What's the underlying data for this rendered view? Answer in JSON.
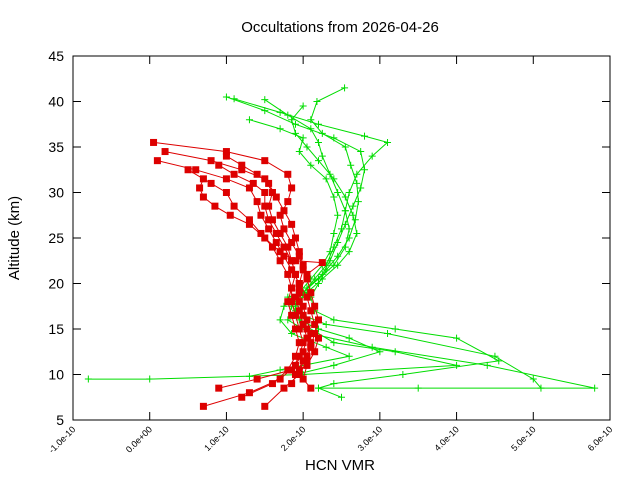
{
  "chart_data": {
    "type": "scatter",
    "title": "Occultations from 2026-04-26",
    "xlabel": "HCN VMR",
    "ylabel": "Altitude (km)",
    "xlim": [
      -1e-10,
      6e-10
    ],
    "ylim": [
      5,
      45
    ],
    "x_ticks": [
      -1e-10,
      0.0,
      1e-10,
      2e-10,
      3e-10,
      4e-10,
      5e-10,
      6e-10
    ],
    "x_tick_labels": [
      "-1.0e-10",
      "0.0e+00",
      "1.0e-10",
      "2.0e-10",
      "3.0e-10",
      "4.0e-10",
      "5.0e-10",
      "6.0e-10"
    ],
    "y_ticks": [
      5,
      10,
      15,
      20,
      25,
      30,
      35,
      40,
      45
    ],
    "y_tick_labels": [
      "5",
      "10",
      "15",
      "20",
      "25",
      "30",
      "35",
      "40",
      "45"
    ],
    "grid": false,
    "series": [
      {
        "color": "#00dd00",
        "marker": "plus",
        "style": "line",
        "points": [
          [
            2.54e-10,
            41.5
          ],
          [
            2.18e-10,
            40.0
          ],
          [
            2.1e-10,
            38.0
          ],
          [
            2.25e-10,
            36.5
          ],
          [
            2.55e-10,
            35.0
          ],
          [
            2.62e-10,
            33.0
          ],
          [
            2.7e-10,
            31.0
          ],
          [
            2.72e-10,
            29.0
          ],
          [
            2.68e-10,
            27.0
          ],
          [
            2.6e-10,
            25.0
          ],
          [
            2.45e-10,
            23.0
          ],
          [
            2.3e-10,
            21.5
          ],
          [
            2.2e-10,
            20.0
          ],
          [
            2.1e-10,
            18.5
          ],
          [
            2.15e-10,
            17.0
          ],
          [
            2.4e-10,
            16.0
          ],
          [
            3.2e-10,
            15.0
          ],
          [
            4e-10,
            14.0
          ],
          [
            4.55e-10,
            11.5
          ],
          [
            3.3e-10,
            10.0
          ],
          [
            2.4e-10,
            9.0
          ],
          [
            2.2e-10,
            8.5
          ],
          [
            2.5e-10,
            7.5
          ]
        ]
      },
      {
        "color": "#00dd00",
        "marker": "plus",
        "style": "line",
        "points": [
          [
            1e-10,
            40.5
          ],
          [
            1.5e-10,
            39.0
          ],
          [
            1.9e-10,
            37.5
          ],
          [
            2.4e-10,
            36.0
          ],
          [
            2.75e-10,
            34.5
          ],
          [
            2.8e-10,
            32.5
          ],
          [
            2.75e-10,
            30.5
          ],
          [
            2.65e-10,
            28.5
          ],
          [
            2.55e-10,
            26.5
          ],
          [
            2.45e-10,
            24.5
          ],
          [
            2.35e-10,
            22.5
          ],
          [
            2.25e-10,
            21.0
          ],
          [
            2.05e-10,
            19.5
          ],
          [
            1.95e-10,
            18.0
          ],
          [
            2e-10,
            16.5
          ],
          [
            2.3e-10,
            15.5
          ],
          [
            3.1e-10,
            14.5
          ],
          [
            4.5e-10,
            12.0
          ],
          [
            5e-10,
            9.5
          ],
          [
            5.1e-10,
            8.5
          ]
        ]
      },
      {
        "color": "#00dd00",
        "marker": "plus",
        "style": "line",
        "points": [
          [
            1.1e-10,
            40.3
          ],
          [
            1.7e-10,
            38.8
          ],
          [
            2.2e-10,
            37.5
          ],
          [
            2.8e-10,
            36.2
          ],
          [
            3.1e-10,
            35.5
          ],
          [
            2.9e-10,
            34.0
          ],
          [
            2.7e-10,
            32.0
          ],
          [
            2.6e-10,
            30.0
          ],
          [
            2.55e-10,
            28.0
          ],
          [
            2.5e-10,
            26.0
          ],
          [
            2.4e-10,
            24.0
          ],
          [
            2.3e-10,
            22.0
          ],
          [
            2.15e-10,
            20.5
          ],
          [
            2e-10,
            19.0
          ],
          [
            1.85e-10,
            17.5
          ],
          [
            1.8e-10,
            16.0
          ],
          [
            2.1e-10,
            14.5
          ],
          [
            2.9e-10,
            13.0
          ],
          [
            4.4e-10,
            11.0
          ],
          [
            5.8e-10,
            8.5
          ],
          [
            3.5e-10,
            8.5
          ],
          [
            2.2e-10,
            8.5
          ]
        ]
      },
      {
        "color": "#00dd00",
        "marker": "plus",
        "style": "line",
        "points": [
          [
            1.5e-10,
            40.2
          ],
          [
            1.8e-10,
            38.5
          ],
          [
            2.1e-10,
            37.0
          ],
          [
            2.2e-10,
            35.5
          ],
          [
            2.25e-10,
            34.0
          ],
          [
            2.35e-10,
            32.0
          ],
          [
            2.45e-10,
            30.0
          ],
          [
            2.55e-10,
            28.0
          ],
          [
            2.6e-10,
            26.0
          ],
          [
            2.55e-10,
            24.0
          ],
          [
            2.4e-10,
            22.0
          ],
          [
            2.2e-10,
            20.5
          ],
          [
            2e-10,
            19.0
          ],
          [
            1.8e-10,
            18.5
          ],
          [
            1.9e-10,
            17.0
          ],
          [
            2e-10,
            15.5
          ],
          [
            2.4e-10,
            13.5
          ],
          [
            3.2e-10,
            12.5
          ],
          [
            4e-10,
            11.0
          ],
          [
            2e-10,
            10.0
          ],
          [
            0.0,
            9.5
          ],
          [
            -8e-11,
            9.5
          ]
        ]
      },
      {
        "color": "#00dd00",
        "marker": "plus",
        "style": "line",
        "points": [
          [
            1.3e-10,
            38.0
          ],
          [
            1.7e-10,
            37.0
          ],
          [
            2e-10,
            36.0
          ],
          [
            1.95e-10,
            34.5
          ],
          [
            2.1e-10,
            33.0
          ],
          [
            2.3e-10,
            31.5
          ],
          [
            2.4e-10,
            29.5
          ],
          [
            2.45e-10,
            27.5
          ],
          [
            2.4e-10,
            25.5
          ],
          [
            2.35e-10,
            23.5
          ],
          [
            2.25e-10,
            22.0
          ],
          [
            2.1e-10,
            20.5
          ],
          [
            1.95e-10,
            19.0
          ],
          [
            1.75e-10,
            17.5
          ],
          [
            1.7e-10,
            16.0
          ],
          [
            1.85e-10,
            14.5
          ],
          [
            2.3e-10,
            13.0
          ],
          [
            2.6e-10,
            12.0
          ],
          [
            1.7e-10,
            10.5
          ],
          [
            1.3e-10,
            9.8
          ]
        ]
      },
      {
        "color": "#00dd00",
        "marker": "plus",
        "style": "line",
        "points": [
          [
            2e-10,
            39.5
          ],
          [
            1.85e-10,
            38.0
          ],
          [
            1.9e-10,
            36.5
          ],
          [
            2.05e-10,
            35.0
          ],
          [
            2.2e-10,
            33.5
          ],
          [
            2.4e-10,
            31.5
          ],
          [
            2.55e-10,
            29.5
          ],
          [
            2.65e-10,
            27.5
          ],
          [
            2.7e-10,
            25.5
          ],
          [
            2.6e-10,
            23.5
          ],
          [
            2.45e-10,
            22.0
          ],
          [
            2.25e-10,
            20.5
          ],
          [
            2.05e-10,
            19.0
          ],
          [
            1.9e-10,
            17.5
          ],
          [
            1.95e-10,
            16.0
          ],
          [
            2.2e-10,
            15.0
          ],
          [
            2.6e-10,
            14.0
          ],
          [
            3e-10,
            12.5
          ],
          [
            2.4e-10,
            11.0
          ],
          [
            1.9e-10,
            10.0
          ]
        ]
      },
      {
        "color": "#dd0000",
        "marker": "square",
        "style": "line",
        "points": [
          [
            5e-12,
            35.5
          ],
          [
            1e-10,
            34.5
          ],
          [
            1.5e-10,
            33.5
          ],
          [
            1.8e-10,
            32.0
          ],
          [
            1.85e-10,
            30.5
          ],
          [
            1.8e-10,
            29.0
          ],
          [
            1.7e-10,
            27.5
          ],
          [
            1.75e-10,
            26.0
          ],
          [
            1.85e-10,
            24.5
          ],
          [
            1.95e-10,
            23.0
          ],
          [
            2e-10,
            21.5
          ],
          [
            1.95e-10,
            20.0
          ],
          [
            1.9e-10,
            18.5
          ],
          [
            1.95e-10,
            17.0
          ],
          [
            2e-10,
            15.5
          ],
          [
            2.05e-10,
            14.0
          ],
          [
            2e-10,
            12.5
          ],
          [
            1.9e-10,
            11.0
          ],
          [
            1.7e-10,
            9.5
          ],
          [
            1.3e-10,
            8.0
          ],
          [
            7e-11,
            6.5
          ]
        ]
      },
      {
        "color": "#dd0000",
        "marker": "square",
        "style": "line",
        "points": [
          [
            2e-11,
            34.5
          ],
          [
            8e-11,
            33.5
          ],
          [
            1.2e-10,
            32.5
          ],
          [
            1.5e-10,
            31.5
          ],
          [
            1.6e-10,
            30.0
          ],
          [
            1.55e-10,
            28.5
          ],
          [
            1.6e-10,
            27.0
          ],
          [
            1.7e-10,
            25.5
          ],
          [
            1.8e-10,
            24.0
          ],
          [
            1.85e-10,
            22.5
          ],
          [
            1.9e-10,
            21.0
          ],
          [
            1.85e-10,
            19.5
          ],
          [
            1.8e-10,
            18.0
          ],
          [
            1.85e-10,
            16.5
          ],
          [
            1.9e-10,
            15.0
          ],
          [
            1.95e-10,
            13.5
          ],
          [
            1.9e-10,
            12.0
          ],
          [
            1.8e-10,
            10.5
          ],
          [
            1.6e-10,
            9.0
          ],
          [
            1.2e-10,
            7.5
          ]
        ]
      },
      {
        "color": "#dd0000",
        "marker": "square",
        "style": "line",
        "points": [
          [
            1e-11,
            33.5
          ],
          [
            6e-11,
            32.5
          ],
          [
            1e-10,
            31.5
          ],
          [
            1.3e-10,
            30.5
          ],
          [
            1.4e-10,
            29.0
          ],
          [
            1.45e-10,
            27.5
          ],
          [
            1.55e-10,
            26.0
          ],
          [
            1.65e-10,
            24.5
          ],
          [
            1.75e-10,
            23.0
          ],
          [
            1.85e-10,
            21.5
          ],
          [
            1.95e-10,
            20.0
          ],
          [
            2.05e-10,
            18.5
          ],
          [
            2.1e-10,
            17.0
          ],
          [
            2.15e-10,
            15.5
          ],
          [
            2.2e-10,
            14.0
          ],
          [
            2.15e-10,
            12.5
          ],
          [
            2.05e-10,
            11.0
          ],
          [
            2e-10,
            9.5
          ],
          [
            2.1e-10,
            8.5
          ]
        ]
      },
      {
        "color": "#dd0000",
        "marker": "square",
        "style": "line",
        "points": [
          [
            5e-11,
            32.5
          ],
          [
            8e-11,
            31.0
          ],
          [
            1e-10,
            30.0
          ],
          [
            1.1e-10,
            28.5
          ],
          [
            1.3e-10,
            27.0
          ],
          [
            1.45e-10,
            25.5
          ],
          [
            1.6e-10,
            24.0
          ],
          [
            1.7e-10,
            22.5
          ],
          [
            1.8e-10,
            21.0
          ],
          [
            1.85e-10,
            19.5
          ],
          [
            1.85e-10,
            18.0
          ],
          [
            1.9e-10,
            16.5
          ],
          [
            1.95e-10,
            15.0
          ],
          [
            2e-10,
            13.5
          ],
          [
            1.95e-10,
            12.0
          ],
          [
            1.85e-10,
            10.5
          ],
          [
            1.4e-10,
            9.5
          ],
          [
            9e-11,
            8.5
          ]
        ]
      },
      {
        "color": "#dd0000",
        "marker": "square",
        "style": "line",
        "points": [
          [
            7e-11,
            31.5
          ],
          [
            6.5e-11,
            30.5
          ],
          [
            7e-11,
            29.5
          ],
          [
            8.5e-11,
            28.5
          ],
          [
            1.05e-10,
            27.5
          ],
          [
            1.3e-10,
            26.5
          ],
          [
            1.5e-10,
            25.0
          ],
          [
            1.7e-10,
            23.5
          ],
          [
            1.9e-10,
            22.5
          ],
          [
            2.25e-10,
            22.3
          ],
          [
            2.05e-10,
            21.0
          ],
          [
            1.95e-10,
            19.0
          ],
          [
            2e-10,
            17.5
          ],
          [
            2.05e-10,
            16.0
          ],
          [
            2.1e-10,
            14.5
          ],
          [
            2.1e-10,
            13.0
          ],
          [
            2.05e-10,
            11.5
          ],
          [
            1.95e-10,
            10.0
          ],
          [
            1.75e-10,
            8.5
          ],
          [
            1.5e-10,
            6.5
          ]
        ]
      },
      {
        "color": "#dd0000",
        "marker": "square",
        "style": "line",
        "points": [
          [
            9e-11,
            33.0
          ],
          [
            1.1e-10,
            32.0
          ],
          [
            1.35e-10,
            31.0
          ],
          [
            1.5e-10,
            30.0
          ],
          [
            1.5e-10,
            28.5
          ],
          [
            1.55e-10,
            27.0
          ],
          [
            1.65e-10,
            25.5
          ],
          [
            1.75e-10,
            24.0
          ],
          [
            1.85e-10,
            22.5
          ],
          [
            1.9e-10,
            21.0
          ],
          [
            1.95e-10,
            19.5
          ],
          [
            1.95e-10,
            18.0
          ],
          [
            2e-10,
            16.5
          ],
          [
            2.05e-10,
            15.0
          ],
          [
            2.1e-10,
            13.5
          ],
          [
            2.05e-10,
            12.0
          ],
          [
            1.95e-10,
            10.5
          ],
          [
            1.85e-10,
            9.0
          ]
        ]
      },
      {
        "color": "#dd0000",
        "marker": "square",
        "style": "line",
        "points": [
          [
            1e-10,
            34.0
          ],
          [
            1.2e-10,
            33.0
          ],
          [
            1.4e-10,
            32.0
          ],
          [
            1.55e-10,
            31.0
          ],
          [
            1.65e-10,
            29.5
          ],
          [
            1.75e-10,
            28.0
          ],
          [
            1.85e-10,
            26.5
          ],
          [
            1.9e-10,
            25.0
          ],
          [
            1.95e-10,
            23.5
          ],
          [
            2e-10,
            22.0
          ],
          [
            2.05e-10,
            20.5
          ],
          [
            2.1e-10,
            19.0
          ],
          [
            2.15e-10,
            17.5
          ],
          [
            2.2e-10,
            16.0
          ],
          [
            2.15e-10,
            14.5
          ],
          [
            2.1e-10,
            13.0
          ],
          [
            2e-10,
            11.5
          ],
          [
            1.9e-10,
            10.0
          ]
        ]
      }
    ]
  }
}
